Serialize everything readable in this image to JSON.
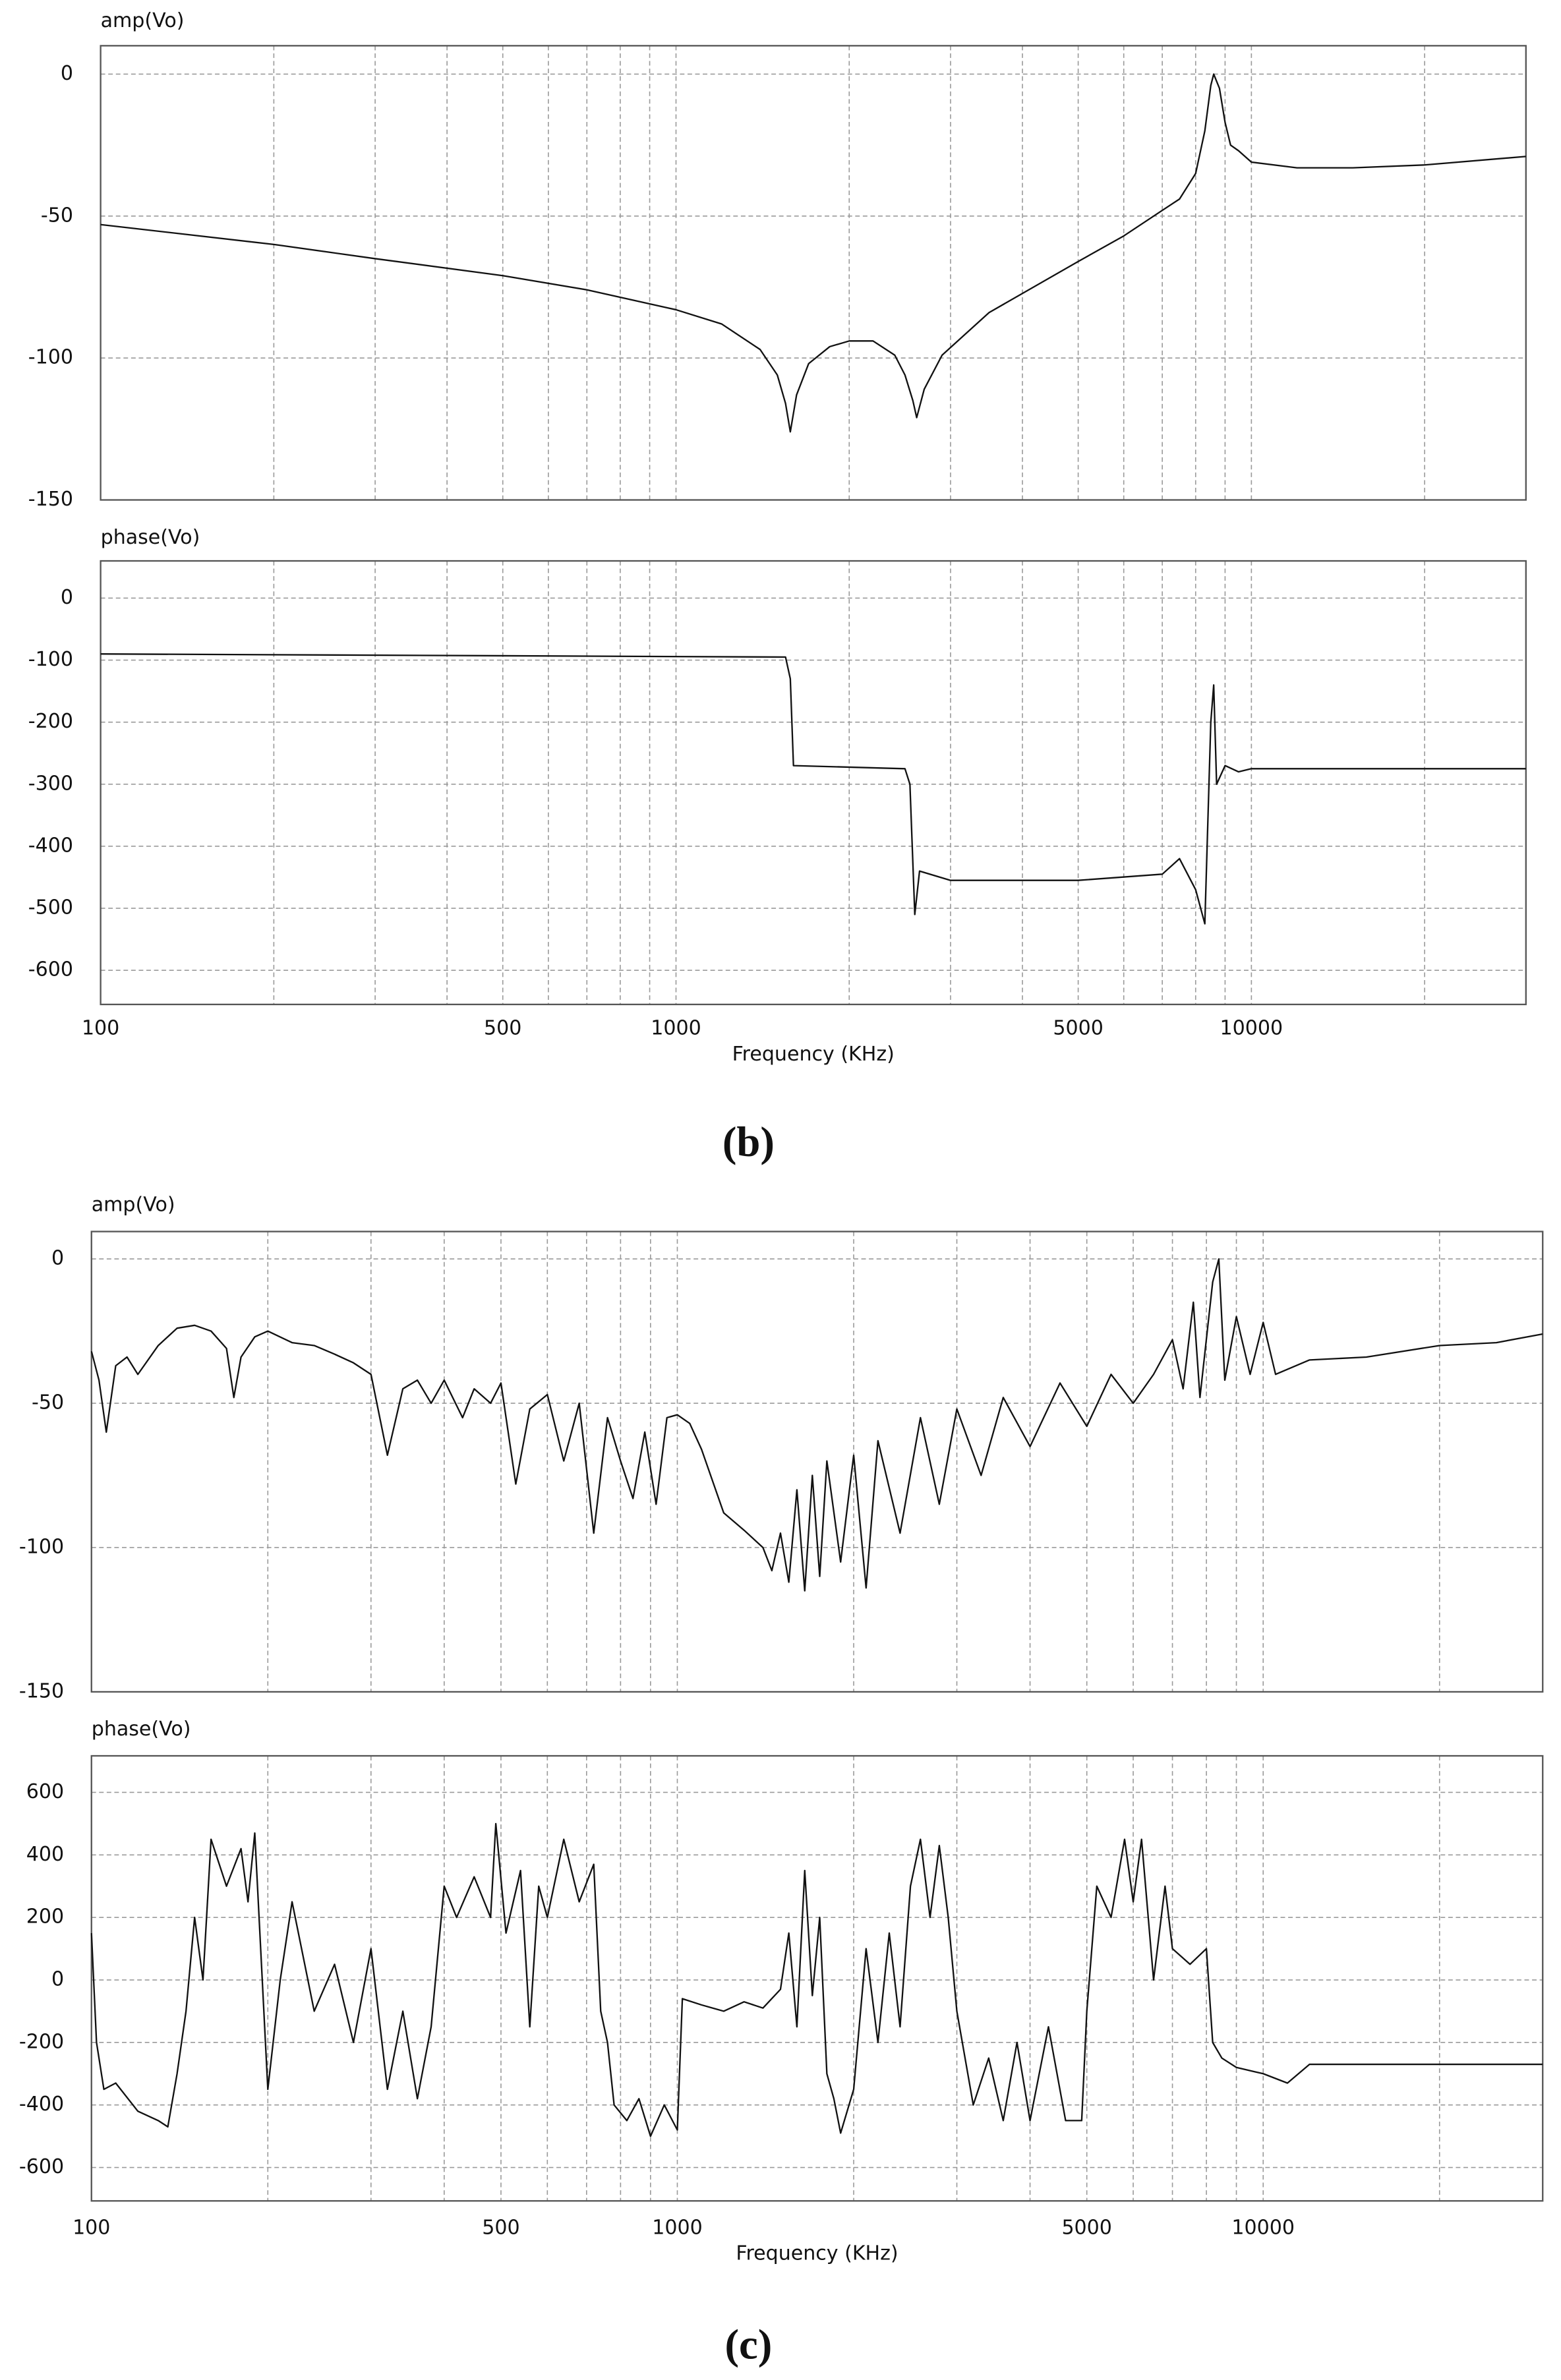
{
  "chart_data": [
    {
      "type": "line",
      "title": "amp(Vo)",
      "xscale": "log",
      "grid": true,
      "xlim": [
        100,
        30000
      ],
      "ylim": [
        -150,
        10
      ],
      "xticks": [
        100,
        500,
        1000,
        5000,
        10000
      ],
      "xgrid": [
        200,
        300,
        400,
        600,
        700,
        800,
        900,
        2000,
        3000,
        4000,
        6000,
        7000,
        8000,
        9000,
        20000
      ],
      "yticks": [
        0,
        -50,
        -100,
        -150
      ],
      "x": [
        100,
        200,
        300,
        500,
        700,
        1000,
        1200,
        1400,
        1500,
        1550,
        1580,
        1620,
        1700,
        1850,
        2000,
        2200,
        2400,
        2500,
        2580,
        2620,
        2700,
        2900,
        3500,
        5000,
        6000,
        7000,
        7500,
        8000,
        8300,
        8500,
        8600,
        8800,
        9000,
        9200,
        9500,
        10000,
        12000,
        15000,
        20000,
        30000
      ],
      "series": [
        {
          "color": "#111111",
          "values": [
            -53,
            -60,
            -65,
            -71,
            -76,
            -83,
            -88,
            -97,
            -106,
            -116,
            -126,
            -113,
            -102,
            -96,
            -94,
            -94,
            -99,
            -106,
            -115,
            -121,
            -111,
            -99,
            -84,
            -66,
            -57,
            -48,
            -44,
            -35,
            -20,
            -4,
            0,
            -5,
            -17,
            -25,
            -27,
            -31,
            -33,
            -33,
            -32,
            -29
          ]
        }
      ]
    },
    {
      "type": "line",
      "title": "phase(Vo)",
      "xlabel": "Frequency (KHz)",
      "caption": "(b)",
      "xscale": "log",
      "grid": true,
      "xlim": [
        100,
        30000
      ],
      "ylim": [
        -655,
        60
      ],
      "xticks": [
        100,
        500,
        1000,
        5000,
        10000
      ],
      "xgrid": [
        200,
        300,
        400,
        600,
        700,
        800,
        900,
        2000,
        3000,
        4000,
        6000,
        7000,
        8000,
        9000,
        20000
      ],
      "yticks": [
        0,
        -100,
        -200,
        -300,
        -400,
        -500,
        -600
      ],
      "x": [
        100,
        1550,
        1580,
        1600,
        2500,
        2550,
        2600,
        2650,
        3000,
        5000,
        7000,
        7500,
        8000,
        8300,
        8500,
        8600,
        8700,
        9000,
        9500,
        10000,
        30000
      ],
      "series": [
        {
          "color": "#111111",
          "values": [
            -90,
            -95,
            -130,
            -270,
            -275,
            -300,
            -510,
            -440,
            -455,
            -455,
            -445,
            -420,
            -470,
            -525,
            -200,
            -140,
            -300,
            -270,
            -280,
            -275,
            -275
          ]
        }
      ]
    },
    {
      "type": "line",
      "title": "amp(Vo)",
      "xscale": "log",
      "grid": true,
      "xlim": [
        100,
        30000
      ],
      "ylim": [
        -150,
        9.5
      ],
      "xticks": [
        100,
        500,
        1000,
        5000,
        10000
      ],
      "xgrid": [
        200,
        300,
        400,
        600,
        700,
        800,
        900,
        2000,
        3000,
        4000,
        6000,
        7000,
        8000,
        9000,
        20000
      ],
      "yticks": [
        0,
        -50,
        -100,
        -150
      ],
      "x": [
        100,
        103,
        106,
        110,
        115,
        120,
        130,
        140,
        150,
        160,
        170,
        175,
        180,
        190,
        200,
        220,
        240,
        260,
        280,
        300,
        320,
        340,
        360,
        380,
        400,
        430,
        450,
        480,
        500,
        530,
        560,
        600,
        640,
        680,
        720,
        760,
        800,
        840,
        880,
        920,
        960,
        1000,
        1050,
        1100,
        1200,
        1300,
        1400,
        1450,
        1500,
        1550,
        1600,
        1650,
        1700,
        1750,
        1800,
        1900,
        2000,
        2100,
        2200,
        2400,
        2600,
        2800,
        3000,
        3300,
        3600,
        4000,
        4500,
        5000,
        5500,
        6000,
        6500,
        7000,
        7300,
        7600,
        7800,
        8200,
        8400,
        8600,
        9000,
        9500,
        10000,
        10500,
        12000,
        15000,
        20000,
        25000,
        30000
      ],
      "series": [
        {
          "color": "#111111",
          "values": [
            -32,
            -42,
            -60,
            -37,
            -34,
            -40,
            -30,
            -24,
            -23,
            -25,
            -31,
            -48,
            -34,
            -27,
            -25,
            -29,
            -30,
            -33,
            -36,
            -40,
            -68,
            -45,
            -42,
            -50,
            -42,
            -55,
            -45,
            -50,
            -43,
            -78,
            -52,
            -47,
            -70,
            -50,
            -95,
            -55,
            -70,
            -83,
            -60,
            -85,
            -55,
            -54,
            -57,
            -66,
            -88,
            -94,
            -100,
            -108,
            -95,
            -112,
            -80,
            -115,
            -75,
            -110,
            -70,
            -105,
            -68,
            -114,
            -63,
            -95,
            -55,
            -85,
            -52,
            -75,
            -48,
            -65,
            -43,
            -58,
            -40,
            -50,
            -40,
            -28,
            -45,
            -15,
            -48,
            -8,
            0,
            -42,
            -20,
            -40,
            -22,
            -40,
            -35,
            -34,
            -30,
            -29,
            -26
          ]
        }
      ]
    },
    {
      "type": "line",
      "title": "phase(Vo)",
      "xlabel": "Frequency (KHz)",
      "caption": "(c)",
      "xscale": "log",
      "grid": true,
      "xlim": [
        100,
        30000
      ],
      "ylim": [
        -707,
        717
      ],
      "xticks": [
        100,
        500,
        1000,
        5000,
        10000
      ],
      "xgrid": [
        200,
        300,
        400,
        600,
        700,
        800,
        900,
        2000,
        3000,
        4000,
        6000,
        7000,
        8000,
        9000,
        20000
      ],
      "yticks": [
        600,
        400,
        200,
        0,
        -200,
        -400,
        -600
      ],
      "x": [
        100,
        102,
        105,
        110,
        120,
        130,
        135,
        140,
        145,
        150,
        155,
        160,
        170,
        180,
        185,
        190,
        200,
        210,
        220,
        240,
        260,
        280,
        300,
        320,
        340,
        360,
        380,
        400,
        420,
        450,
        480,
        490,
        510,
        540,
        560,
        580,
        600,
        640,
        680,
        720,
        740,
        760,
        780,
        820,
        860,
        900,
        950,
        1000,
        1020,
        1100,
        1200,
        1300,
        1400,
        1500,
        1550,
        1600,
        1650,
        1700,
        1750,
        1800,
        1850,
        1900,
        2000,
        2100,
        2200,
        2300,
        2400,
        2500,
        2600,
        2700,
        2800,
        2900,
        3000,
        3200,
        3400,
        3600,
        3800,
        4000,
        4300,
        4600,
        4900,
        5000,
        5200,
        5500,
        5800,
        6000,
        6200,
        6500,
        6800,
        7000,
        7500,
        8000,
        8200,
        8500,
        9000,
        10000,
        11000,
        12000,
        20000,
        30000
      ],
      "series": [
        {
          "color": "#111111",
          "values": [
            150,
            -200,
            -350,
            -330,
            -420,
            -450,
            -470,
            -300,
            -100,
            200,
            0,
            450,
            300,
            420,
            250,
            470,
            -350,
            0,
            250,
            -100,
            50,
            -200,
            100,
            -350,
            -100,
            -380,
            -150,
            300,
            200,
            330,
            200,
            500,
            150,
            350,
            -150,
            300,
            200,
            450,
            250,
            370,
            -100,
            -200,
            -400,
            -450,
            -380,
            -500,
            -400,
            -480,
            -60,
            -80,
            -100,
            -70,
            -90,
            -30,
            150,
            -150,
            350,
            -50,
            200,
            -300,
            -380,
            -490,
            -350,
            100,
            -200,
            150,
            -150,
            300,
            450,
            200,
            430,
            200,
            -100,
            -400,
            -250,
            -450,
            -200,
            -450,
            -150,
            -450,
            -450,
            -100,
            300,
            200,
            450,
            250,
            450,
            0,
            300,
            100,
            50,
            100,
            -200,
            -250,
            -280,
            -300,
            -330,
            -270,
            -270,
            -270
          ]
        }
      ]
    }
  ]
}
